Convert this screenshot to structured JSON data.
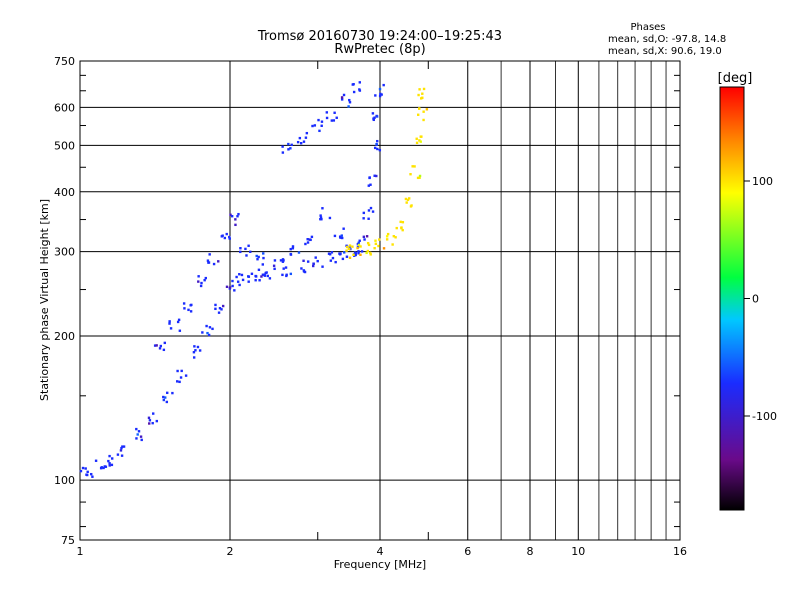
{
  "chart_data": {
    "type": "scatter",
    "title": "Tromsø 20160730 19:24:00–19:25:43",
    "subtitle": "RwPretec (8p)",
    "xlabel": "Frequency [MHz]",
    "ylabel": "Stationary phase Virtual Height [km]",
    "xscale": "log",
    "yscale": "log",
    "xlim": [
      1,
      16
    ],
    "ylim": [
      75,
      750
    ],
    "x_ticks": [
      "1",
      "2",
      "4",
      "6",
      "8",
      "10",
      "16"
    ],
    "y_ticks": [
      "75",
      "100",
      "200",
      "300",
      "400",
      "500",
      "600",
      "750"
    ],
    "grid": true,
    "phase_stats": {
      "heading": "Phases",
      "line_o": "mean, sd,O: -97.8, 14.8",
      "line_x": "mean, sd,X: 90.6, 19.0"
    },
    "colorbar": {
      "label": "[deg]",
      "range": [
        -180,
        180
      ],
      "ticks": [
        "100",
        "0",
        "-100"
      ]
    },
    "series": [
      {
        "x": [
          1.0,
          1.05,
          1.1,
          1.15,
          1.2,
          1.3,
          1.4,
          1.5,
          1.6,
          1.7,
          1.8,
          1.9,
          2.0,
          2.1,
          2.2,
          2.3,
          2.4,
          2.6,
          2.8,
          3.0,
          3.2,
          3.4
        ],
        "y": [
          105,
          103,
          107,
          110,
          115,
          125,
          135,
          150,
          165,
          185,
          205,
          230,
          255,
          262,
          265,
          268,
          271,
          275,
          280,
          286,
          292,
          298
        ],
        "phase": -100
      },
      {
        "x": [
          3.5,
          3.6,
          3.7,
          3.8,
          3.85,
          3.9,
          3.95,
          4.0
        ],
        "y": [
          300,
          305,
          320,
          360,
          420,
          500,
          580,
          650
        ],
        "phase": -100
      },
      {
        "x": [
          3.4,
          3.6,
          3.8,
          4.0,
          4.2,
          4.4,
          4.6,
          4.7,
          4.8,
          4.85,
          4.9
        ],
        "y": [
          300,
          302,
          305,
          310,
          318,
          340,
          380,
          440,
          520,
          580,
          640
        ],
        "phase": 100
      },
      {
        "x": [
          2.6,
          2.8,
          3.0,
          3.2,
          3.4,
          3.6
        ],
        "y": [
          490,
          520,
          550,
          580,
          620,
          660
        ],
        "phase": -100
      },
      {
        "x": [
          1.45,
          1.55,
          1.65,
          1.75,
          1.85,
          1.95,
          2.05,
          2.15,
          2.3,
          2.5,
          2.7,
          2.9,
          3.1,
          3.3
        ],
        "y": [
          190,
          210,
          230,
          260,
          290,
          320,
          350,
          300,
          290,
          285,
          300,
          320,
          360,
          330
        ],
        "phase": -100
      }
    ]
  }
}
